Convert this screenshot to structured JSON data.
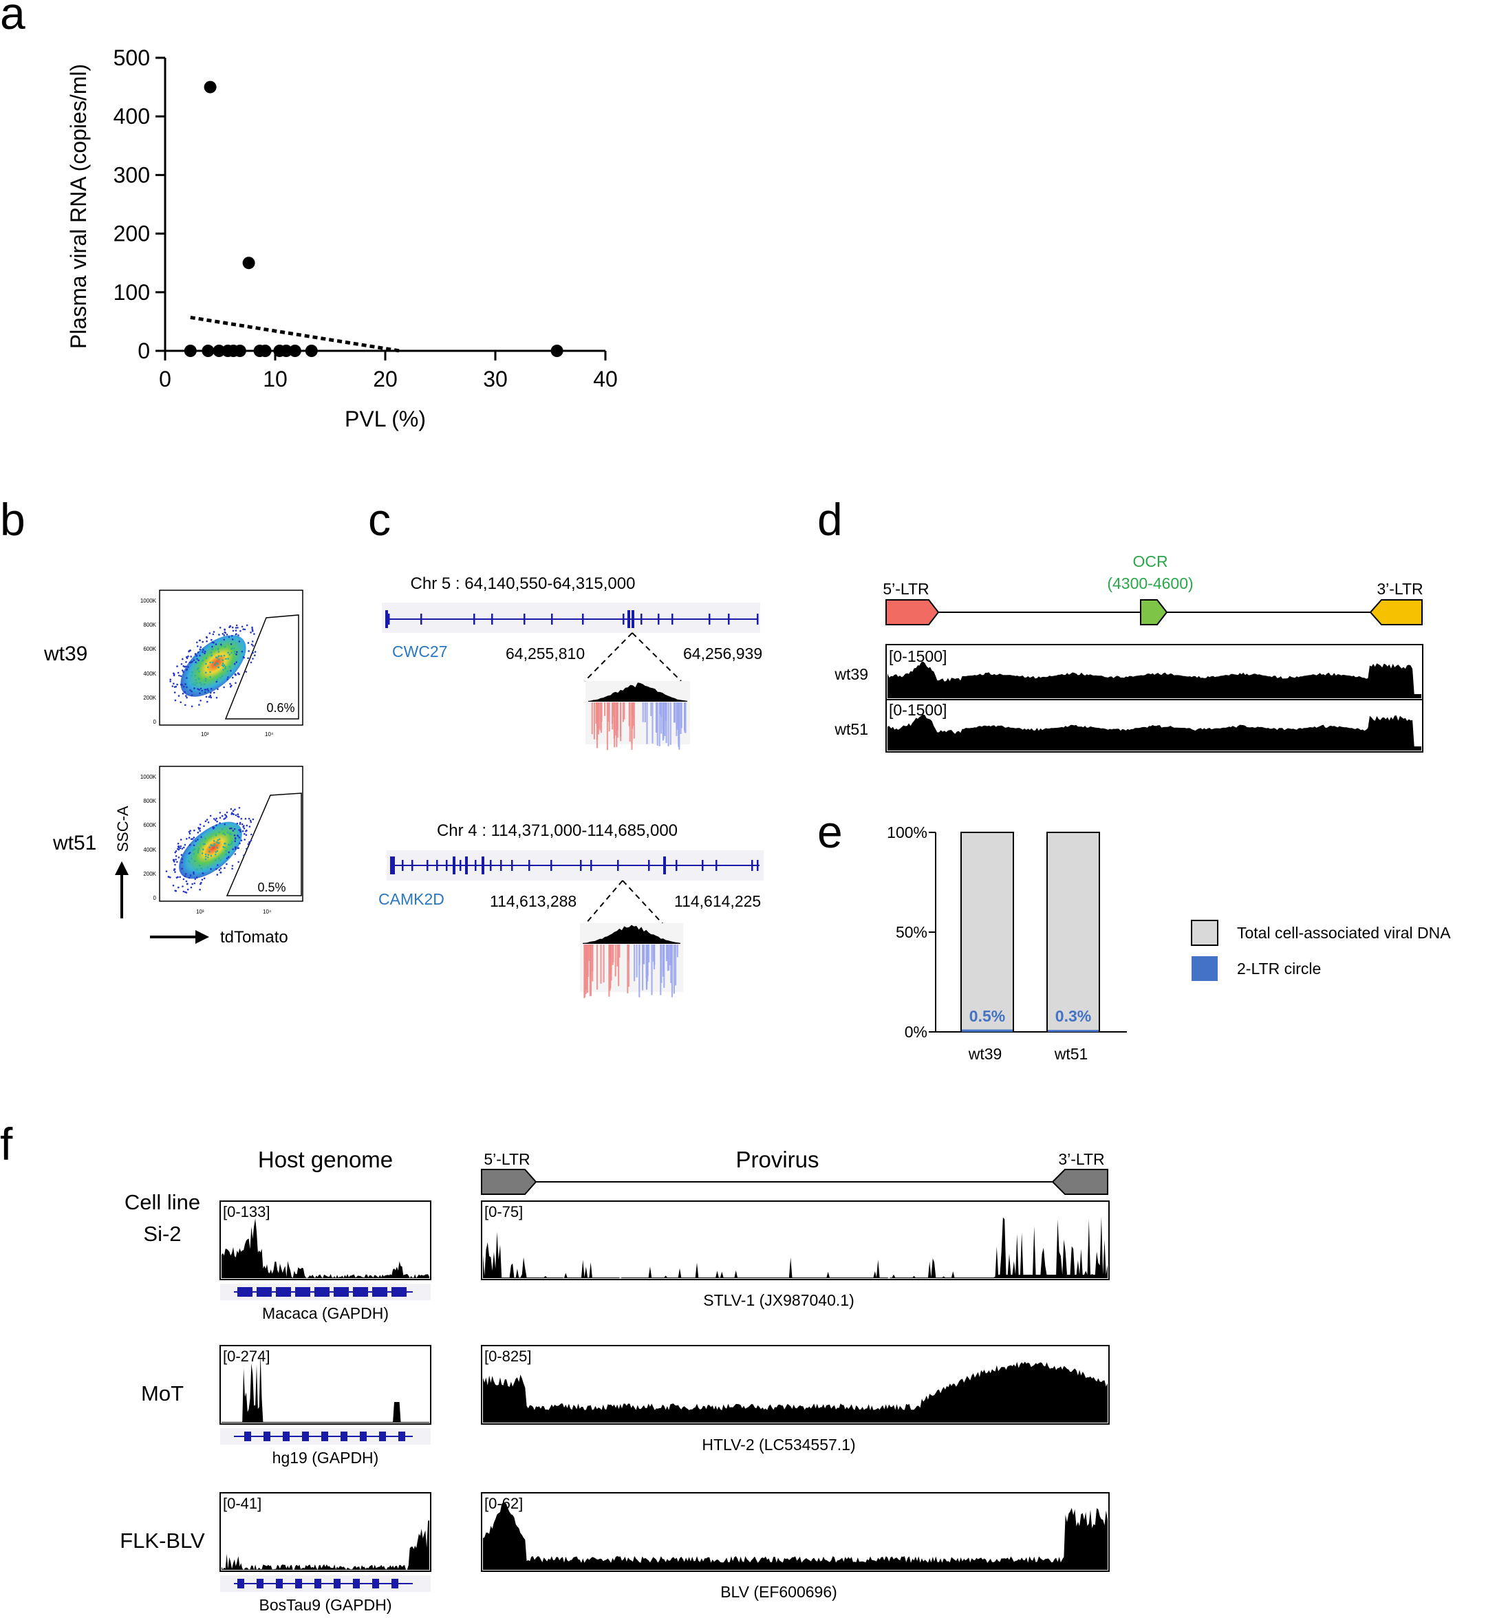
{
  "panel_letters": {
    "a": "a",
    "b": "b",
    "c": "c",
    "d": "d",
    "e": "e",
    "f": "f"
  },
  "colors": {
    "red_reads": "#ef8a8a",
    "blue_reads": "#9aa6ef",
    "gene": "#1a1aa8",
    "gene_label": "#2a78c2",
    "ocr": "#2aa84a",
    "ltr5": "#f26b63",
    "ocr_box": "#7ec447",
    "ltr3": "#f6c100",
    "bar_gray": "#d9d9d9",
    "bar_blue": "#4472c4"
  },
  "panel_a": {
    "chart_data": {
      "type": "scatter",
      "title": "",
      "xlabel": "PVL (%)",
      "ylabel": "Plasma viral RNA (copies/ml)",
      "xlim": [
        0,
        40
      ],
      "ylim": [
        0,
        500
      ],
      "xticks": [
        "0",
        "10",
        "20",
        "30",
        "40"
      ],
      "yticks": [
        "0",
        "100",
        "200",
        "300",
        "400",
        "500"
      ],
      "points": [
        {
          "x": 4.1,
          "y": 450
        },
        {
          "x": 7.6,
          "y": 150
        },
        {
          "x": 2.3,
          "y": 0
        },
        {
          "x": 3.9,
          "y": 0
        },
        {
          "x": 4.9,
          "y": 0
        },
        {
          "x": 5.7,
          "y": 0
        },
        {
          "x": 6.2,
          "y": 0
        },
        {
          "x": 6.8,
          "y": 0
        },
        {
          "x": 8.6,
          "y": 0
        },
        {
          "x": 9.1,
          "y": 0
        },
        {
          "x": 10.4,
          "y": 0
        },
        {
          "x": 11.0,
          "y": 0
        },
        {
          "x": 11.8,
          "y": 0
        },
        {
          "x": 13.3,
          "y": 0
        },
        {
          "x": 35.6,
          "y": 0
        }
      ],
      "trendline": {
        "x": [
          2.3,
          21.3
        ],
        "y": [
          57,
          0
        ],
        "style": "dotted"
      }
    }
  },
  "panel_b": {
    "samples": [
      {
        "name": "wt39",
        "percent": "0.6%"
      },
      {
        "name": "wt51",
        "percent": "0.5%"
      }
    ],
    "y_ticks": [
      "1000K",
      "800K",
      "600K",
      "400K",
      "200K",
      "0"
    ],
    "x_ticks": [
      "10³",
      "10⁴"
    ],
    "y_axis_label": "SSC-A",
    "x_axis_label": "tdTomato"
  },
  "panel_c": {
    "loci": [
      {
        "title": "Chr 5 : 64,140,550-64,315,000",
        "gene": "CWC27",
        "left_coord": "64,255,810",
        "right_coord": "64,256,939"
      },
      {
        "title": "Chr 4 : 114,371,000-114,685,000",
        "gene": "CAMK2D",
        "left_coord": "114,613,288",
        "right_coord": "114,614,225"
      }
    ]
  },
  "panel_d": {
    "ltr5": "5’-LTR",
    "ocr_label": "OCR",
    "ocr_range": "(4300-4600)",
    "ltr3": "3’-LTR",
    "tracks": [
      {
        "sample": "wt39",
        "range": "[0-1500]"
      },
      {
        "sample": "wt51",
        "range": "[0-1500]"
      }
    ]
  },
  "panel_e": {
    "chart_data": {
      "type": "bar",
      "stacked": true,
      "categories": [
        "wt39",
        "wt51"
      ],
      "series": [
        {
          "name": "Total cell-associated viral DNA",
          "values": [
            100,
            100
          ]
        },
        {
          "name": "2-LTR circle",
          "values": [
            0.5,
            0.3
          ]
        }
      ],
      "data_labels": [
        "0.5%",
        "0.3%"
      ],
      "yticks": [
        "100%",
        "50%",
        "0%"
      ],
      "ylim": [
        0,
        100
      ],
      "legend_position": "right"
    }
  },
  "panel_f": {
    "host_header": "Host genome",
    "provirus_header": "Provirus",
    "ltr5": "5’-LTR",
    "ltr3": "3’-LTR",
    "cell_line_header": "Cell line",
    "rows": [
      {
        "cell_line": "Si-2",
        "host_range": "[0-133]",
        "host_label": "Macaca (GAPDH)",
        "virus_range": "[0-75]",
        "virus_label": "STLV-1 (JX987040.1)"
      },
      {
        "cell_line": "MoT",
        "host_range": "[0-274]",
        "host_label": "hg19 (GAPDH)",
        "virus_range": "[0-825]",
        "virus_label": "HTLV-2 (LC534557.1)"
      },
      {
        "cell_line": "FLK-BLV",
        "host_range": "[0-41]",
        "host_label": "BosTau9 (GAPDH)",
        "virus_range": "[0-62]",
        "virus_label": "BLV (EF600696)"
      }
    ]
  }
}
